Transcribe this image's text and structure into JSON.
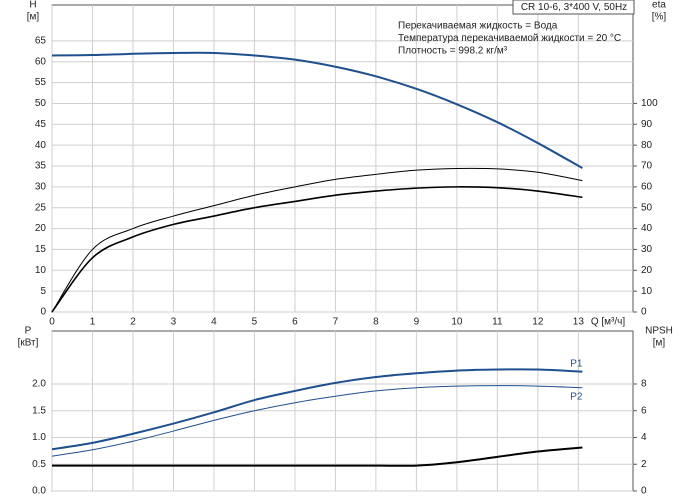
{
  "chart_data": [
    {
      "type": "line",
      "title": "CR 10-6, 3*400 V, 50Hz",
      "annotations": [
        "Перекачиваемая жидкость = Вода",
        "Температура перекачиваемой жидкости = 20 °C",
        "Плотность = 998.2 кг/м³"
      ],
      "x_label": "Q [м³/ч]",
      "y_label": "H",
      "y_unit": "[м]",
      "y2_label": "eta",
      "y2_unit": "[%]",
      "x": [
        0,
        1,
        2,
        3,
        4,
        5,
        6,
        7,
        8,
        9,
        10,
        11,
        12,
        13.1
      ],
      "xlim": [
        0,
        14.35
      ],
      "xticks": [
        0,
        1,
        2,
        3,
        4,
        5,
        6,
        7,
        8,
        9,
        10,
        11,
        12,
        13
      ],
      "ylim": [
        0,
        73.6
      ],
      "yticks": [
        0,
        5,
        10,
        15,
        20,
        25,
        30,
        35,
        40,
        45,
        50,
        55,
        60,
        65
      ],
      "y2lim": [
        0,
        147.2
      ],
      "y2ticks": [
        0,
        10,
        20,
        30,
        40,
        50,
        60,
        70,
        80,
        90,
        100
      ],
      "grid": true,
      "series": [
        {
          "color": "#1f4f8f",
          "line_width": 2,
          "values": [
            61.5,
            61.6,
            61.9,
            62.1,
            62.1,
            61.5,
            60.5,
            58.8,
            56.5,
            53.5,
            49.8,
            45.5,
            40.5,
            34.5
          ]
        },
        {
          "color": "#000000",
          "line_width": 1,
          "axis": "y2",
          "values": [
            0,
            30,
            40,
            46,
            51,
            56,
            60,
            63.6,
            66,
            68,
            68.8,
            68.6,
            67,
            63
          ]
        },
        {
          "color": "#000000",
          "line_width": 1.6,
          "axis": "y2",
          "values": [
            0,
            26,
            36,
            42,
            46,
            50,
            53,
            56,
            58,
            59.4,
            60,
            59.6,
            58,
            55
          ]
        }
      ]
    },
    {
      "type": "line",
      "y_label": "P",
      "y_unit": "[кВт]",
      "y2_label": "NPSH",
      "y2_unit": "[м]",
      "x": [
        0,
        1,
        2,
        3,
        4,
        5,
        6,
        7,
        8,
        9,
        10,
        11,
        12,
        13.1
      ],
      "xlim": [
        0,
        14.35
      ],
      "xticks": [
        0,
        1,
        2,
        3,
        4,
        5,
        6,
        7,
        8,
        9,
        10,
        11,
        12,
        13
      ],
      "ylim": [
        0,
        2.99
      ],
      "yticks": [
        {
          "value": 0,
          "label": "0.0"
        },
        0.5,
        {
          "value": 1,
          "label": "1.0"
        },
        1.5,
        {
          "value": 2,
          "label": "2.0"
        }
      ],
      "y2lim": [
        0,
        11.96
      ],
      "y2ticks": [
        0,
        2,
        4,
        6,
        8
      ],
      "grid": true,
      "series": [
        {
          "name": "P1",
          "color": "#1f4f8f",
          "line_width": 2,
          "values": [
            0.78,
            0.9,
            1.07,
            1.26,
            1.47,
            1.7,
            1.87,
            2.02,
            2.13,
            2.2,
            2.25,
            2.27,
            2.27,
            2.23
          ]
        },
        {
          "name": "P2",
          "color": "#1f4f8f",
          "line_width": 1,
          "values": [
            0.65,
            0.77,
            0.93,
            1.12,
            1.32,
            1.5,
            1.65,
            1.77,
            1.87,
            1.93,
            1.96,
            1.97,
            1.96,
            1.93
          ]
        },
        {
          "color": "#000000",
          "line_width": 2,
          "axis": "y2",
          "values": [
            1.9,
            1.9,
            1.9,
            1.9,
            1.9,
            1.9,
            1.9,
            1.9,
            1.9,
            1.9,
            2.15,
            2.55,
            2.95,
            3.25
          ]
        }
      ]
    }
  ]
}
